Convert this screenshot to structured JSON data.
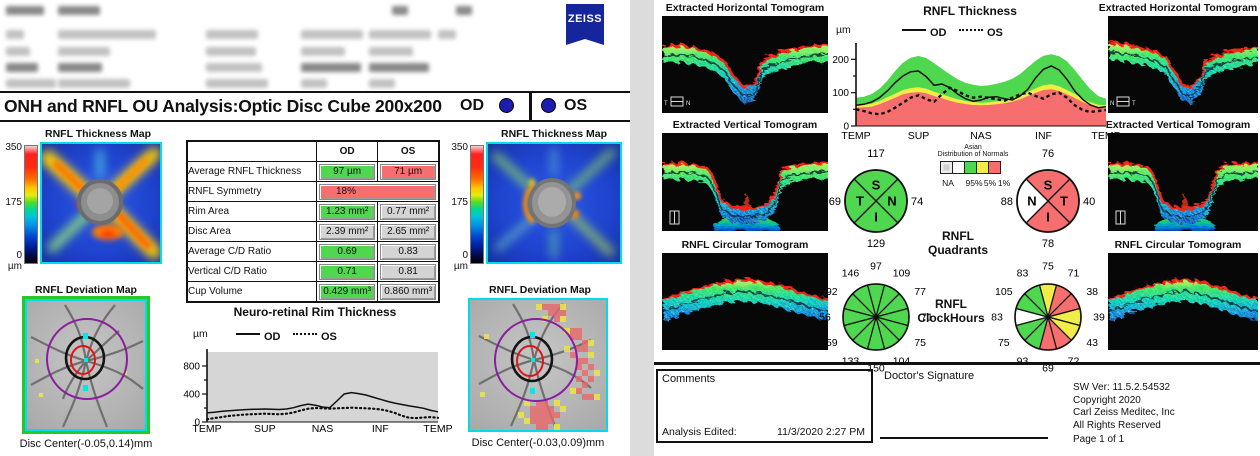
{
  "header": {
    "brand": "ZEISS",
    "title": "ONH and RNFL OU Analysis:Optic Disc Cube 200x200",
    "od_label": "OD",
    "os_label": "OS"
  },
  "left_page": {
    "od": {
      "thickness_map_title": "RNFL Thickness Map",
      "deviation_map_title": "RNFL Deviation Map",
      "disc_center": "Disc Center(-0.05,0.14)mm",
      "scale": {
        "max": "350",
        "mid": "175",
        "min": "0 µm"
      }
    },
    "os": {
      "thickness_map_title": "RNFL Thickness Map",
      "deviation_map_title": "RNFL Deviation Map",
      "disc_center": "Disc Center(-0.03,0.09)mm",
      "scale": {
        "max": "350",
        "mid": "175",
        "min": "0 µm"
      }
    },
    "table": {
      "col_od": "OD",
      "col_os": "OS",
      "rows": [
        {
          "label": "Average RNFL Thickness",
          "od": "97 µm",
          "os": "71 µm",
          "od_status": "green",
          "os_status": "red"
        },
        {
          "label": "RNFL Symmetry",
          "span": true,
          "value": "18%",
          "status": "red"
        },
        {
          "label": "Rim Area",
          "od": "1.23 mm²",
          "os": "0.77 mm²",
          "od_status": "green",
          "os_status": "gray"
        },
        {
          "label": "Disc Area",
          "od": "2.39 mm²",
          "os": "2.65 mm²",
          "od_status": "gray",
          "os_status": "gray"
        },
        {
          "label": "Average C/D Ratio",
          "od": "0.69",
          "os": "0.83",
          "od_status": "green",
          "os_status": "gray"
        },
        {
          "label": "Vertical C/D Ratio",
          "od": "0.71",
          "os": "0.81",
          "od_status": "green",
          "os_status": "gray"
        },
        {
          "label": "Cup Volume",
          "od": "0.429 mm³",
          "os": "0.860 mm³",
          "od_status": "green",
          "os_status": "gray"
        }
      ]
    }
  },
  "right_page": {
    "od_tomograms": {
      "horizontal": "Extracted Horizontal Tomogram",
      "vertical": "Extracted Vertical Tomogram",
      "circular": "RNFL Circular Tomogram",
      "marker_left": "T",
      "marker_right": "N"
    },
    "os_tomograms": {
      "horizontal": "Extracted Horizontal Tomogram",
      "vertical": "Extracted Vertical Tomogram",
      "circular": "RNFL Circular Tomogram",
      "marker_left": "N",
      "marker_right": "T"
    },
    "normals_legend": {
      "title_line1": "Asian",
      "title_line2": "Distribution of Normals",
      "entries": [
        {
          "label": "NA",
          "color": "#d0d0d0"
        },
        {
          "label": "",
          "color": "#ffffff"
        },
        {
          "label": "95%",
          "color": "#4fd84f"
        },
        {
          "label": "5%",
          "color": "#f0ec48"
        },
        {
          "label": "1%",
          "color": "#f76e6e"
        }
      ]
    },
    "quadrants": {
      "heading_line1": "RNFL",
      "heading_line2": "Quadrants",
      "od": {
        "segments": [
          {
            "pos": "top",
            "letter": "S",
            "value": "117",
            "color": "#4fd84f"
          },
          {
            "pos": "right",
            "letter": "N",
            "value": "74",
            "color": "#4fd84f"
          },
          {
            "pos": "bottom",
            "letter": "I",
            "value": "129",
            "color": "#4fd84f"
          },
          {
            "pos": "left",
            "letter": "T",
            "value": "69",
            "color": "#4fd84f"
          }
        ]
      },
      "os": {
        "segments": [
          {
            "pos": "top",
            "letter": "S",
            "value": "76",
            "color": "#f76e6e"
          },
          {
            "pos": "right",
            "letter": "T",
            "value": "40",
            "color": "#f76e6e"
          },
          {
            "pos": "bottom",
            "letter": "I",
            "value": "78",
            "color": "#f76e6e"
          },
          {
            "pos": "left",
            "letter": "N",
            "value": "88",
            "color": "#ffffff"
          }
        ]
      }
    },
    "clock_hours": {
      "heading_line1": "RNFL",
      "heading_line2": "ClockHours",
      "od": {
        "values_clockwise_from_12": [
          "97",
          "109",
          "77",
          "71",
          "75",
          "104",
          "150",
          "133",
          "59",
          "56",
          "92",
          "146"
        ],
        "colors": [
          "#4fd84f",
          "#4fd84f",
          "#4fd84f",
          "#4fd84f",
          "#4fd84f",
          "#4fd84f",
          "#4fd84f",
          "#4fd84f",
          "#4fd84f",
          "#4fd84f",
          "#4fd84f",
          "#4fd84f"
        ]
      },
      "os": {
        "values_clockwise_from_12": [
          "75",
          "71",
          "38",
          "39",
          "43",
          "72",
          "69",
          "93",
          "75",
          "83",
          "105",
          "83"
        ],
        "colors": [
          "#f0ec48",
          "#f76e6e",
          "#f76e6e",
          "#f0ec48",
          "#f0ec48",
          "#f76e6e",
          "#f76e6e",
          "#4fd84f",
          "#4fd84f",
          "#ffffff",
          "#4fd84f",
          "#4fd84f"
        ]
      }
    }
  },
  "footer": {
    "comments_label": "Comments",
    "analysis_edited_label": "Analysis Edited:",
    "analysis_edited_value": "11/3/2020 2:27 PM",
    "signature_label": "Doctor's Signature",
    "sw_version": "SW Ver: 11.5.2.54532",
    "copyright": "Copyright 2020",
    "company": "Carl Zeiss Meditec, Inc",
    "rights": "All Rights Reserved",
    "page_number": "Page 1 of 1"
  },
  "colors": {
    "normal_green": "#4fd84f",
    "borderline_yellow": "#f0ec48",
    "outside_red": "#f76e6e",
    "na_gray": "#d0d0d0",
    "accent_blue": "#1c1cae",
    "map_border_cyan": "#00dce8",
    "deviation_border_green": "#28c828"
  },
  "chart_data": [
    {
      "id": "neuro_retinal_rim_thickness",
      "type": "line",
      "title": "Neuro-retinal Rim Thickness",
      "ylabel": "µm",
      "ylim": [
        0,
        1000
      ],
      "yticks": [
        0,
        400,
        800
      ],
      "yticks_minor": [
        200,
        600
      ],
      "xticklabels": [
        "TEMP",
        "SUP",
        "NAS",
        "INF",
        "TEMP"
      ],
      "legend_position": "top",
      "plot_bg": "gray",
      "series": [
        {
          "name": "OD",
          "style": "solid",
          "values": [
            130,
            140,
            152,
            160,
            168,
            175,
            180,
            183,
            185,
            182,
            178,
            185,
            205,
            235,
            255,
            240,
            215,
            205,
            300,
            400,
            420,
            405,
            385,
            355,
            325,
            295,
            270,
            250,
            230,
            215,
            195,
            165,
            145
          ]
        },
        {
          "name": "OS",
          "style": "dotted",
          "values": [
            40,
            55,
            70,
            85,
            95,
            105,
            110,
            115,
            118,
            115,
            110,
            118,
            135,
            165,
            190,
            200,
            195,
            190,
            195,
            200,
            205,
            200,
            195,
            190,
            180,
            160,
            130,
            90,
            60,
            55,
            65,
            70,
            60
          ]
        }
      ]
    },
    {
      "id": "rnfl_thickness_tsnit",
      "type": "line",
      "title": "RNFL Thickness",
      "ylabel": "µm",
      "ylim": [
        0,
        240
      ],
      "yticks": [
        0,
        100,
        200
      ],
      "yticks_minor": [
        50,
        150
      ],
      "xticklabels": [
        "TEMP",
        "SUP",
        "NAS",
        "INF",
        "TEMP"
      ],
      "legend_position": "top",
      "normative_bands": [
        {
          "name": "normal-95",
          "color": "#4fd84f",
          "top": [
            85,
            88,
            96,
            112,
            136,
            165,
            190,
            205,
            210,
            204,
            188,
            172,
            155,
            140,
            130,
            124,
            120,
            122,
            127,
            133,
            142,
            156,
            176,
            196,
            211,
            215,
            209,
            194,
            168,
            138,
            110,
            90,
            82
          ]
        },
        {
          "name": "borderline-5",
          "color": "#f0ec48",
          "top": [
            63,
            64,
            67,
            75,
            86,
            97,
            108,
            114,
            116,
            112,
            103,
            95,
            87,
            80,
            75,
            72,
            70,
            71,
            74,
            77,
            83,
            91,
            102,
            113,
            122,
            125,
            119,
            108,
            96,
            82,
            71,
            64,
            62
          ]
        },
        {
          "name": "outside-1",
          "color": "#f76e6e",
          "top": [
            55,
            56,
            58,
            65,
            75,
            85,
            95,
            100,
            102,
            98,
            90,
            83,
            76,
            70,
            66,
            63,
            62,
            63,
            65,
            68,
            73,
            80,
            90,
            100,
            108,
            110,
            105,
            95,
            84,
            72,
            62,
            56,
            54
          ]
        }
      ],
      "series": [
        {
          "name": "OD",
          "style": "solid",
          "values": [
            62,
            65,
            72,
            85,
            105,
            130,
            150,
            163,
            165,
            148,
            122,
            126,
            115,
            96,
            82,
            74,
            78,
            86,
            88,
            82,
            78,
            90,
            110,
            145,
            170,
            180,
            168,
            140,
            105,
            80,
            63,
            55,
            58
          ]
        },
        {
          "name": "OS",
          "style": "dashed",
          "values": [
            50,
            45,
            38,
            35,
            42,
            55,
            70,
            85,
            92,
            80,
            73,
            95,
            115,
            105,
            92,
            85,
            88,
            85,
            80,
            76,
            85,
            95,
            100,
            90,
            82,
            95,
            100,
            85,
            62,
            48,
            42,
            45,
            48
          ]
        }
      ]
    }
  ]
}
